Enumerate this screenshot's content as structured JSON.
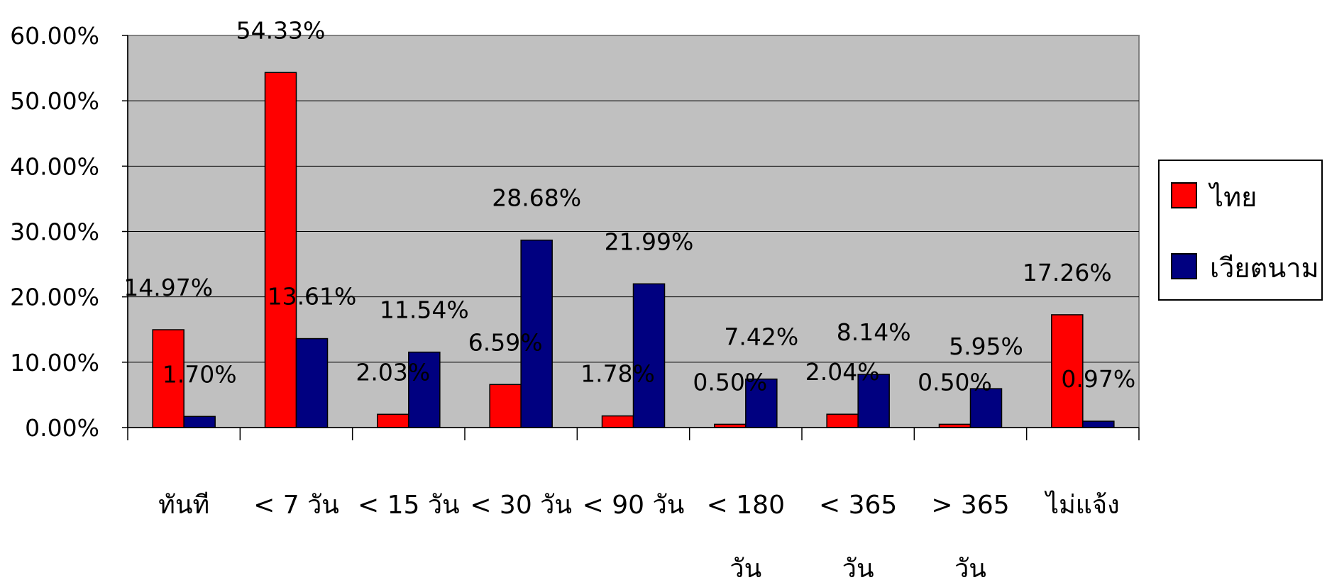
{
  "chart_data": {
    "type": "bar",
    "categories": [
      [
        "ทันที"
      ],
      [
        "< 7  วัน"
      ],
      [
        "< 15 วัน"
      ],
      [
        "< 30 วัน"
      ],
      [
        "< 90 วัน"
      ],
      [
        "< 180",
        "วัน"
      ],
      [
        "< 365",
        "วัน"
      ],
      [
        "> 365",
        "วัน"
      ],
      [
        "ไม่แจ้ง"
      ]
    ],
    "series": [
      {
        "name": "ไทย",
        "color": "#ff0000",
        "values": [
          14.97,
          54.33,
          2.03,
          6.59,
          1.78,
          0.5,
          2.04,
          0.5,
          17.26
        ],
        "labels": [
          "14.97%",
          "54.33%",
          "2.03%",
          "6.59%",
          "1.78%",
          "0.50%",
          "2.04%",
          "0.50%",
          "17.26%"
        ]
      },
      {
        "name": "เวียตนาม",
        "color": "#000080",
        "values": [
          1.7,
          13.61,
          11.54,
          28.68,
          21.99,
          7.42,
          8.14,
          5.95,
          0.97
        ],
        "labels": [
          "1.70%",
          "13.61%",
          "11.54%",
          "28.68%",
          "21.99%",
          "7.42%",
          "8.14%",
          "5.95%",
          "0.97%"
        ]
      }
    ],
    "y_ticks": [
      "0.00%",
      "10.00%",
      "20.00%",
      "30.00%",
      "40.00%",
      "50.00%",
      "60.00%"
    ],
    "ylim": [
      0,
      60
    ],
    "grid": true,
    "plot_background": "#c0c0c0",
    "legend_position": "right",
    "title": "",
    "xlabel": "",
    "ylabel": ""
  }
}
